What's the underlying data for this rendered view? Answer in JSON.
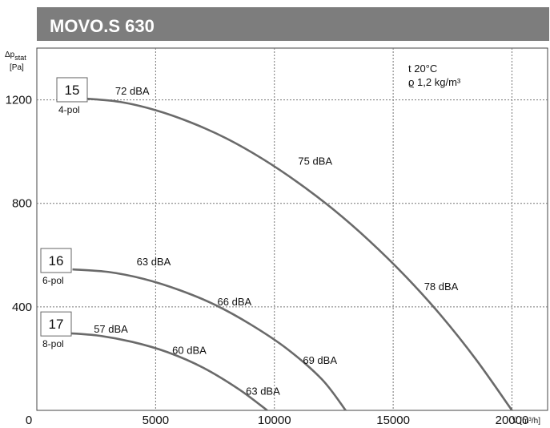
{
  "chart_data": {
    "type": "line",
    "title": "MOVO.S 630",
    "xlabel": "V̇ [m³/h]",
    "ylabel_top": "Δp",
    "ylabel_sub": "stat",
    "ylabel_unit": "[Pa]",
    "xlim": [
      0,
      21500
    ],
    "ylim": [
      0,
      1400
    ],
    "x_ticks": [
      0,
      5000,
      10000,
      15000,
      20000
    ],
    "y_ticks": [
      400,
      800,
      1200
    ],
    "grid": true,
    "notes": [
      "t 20°C",
      "ϱ 1,2 kg/m³"
    ],
    "series": [
      {
        "name": "15",
        "poles": "4-pol",
        "x": [
          2000,
          3500,
          5000,
          6500,
          8000,
          9500,
          11000,
          12500,
          14000,
          15500,
          17000,
          18500,
          20000
        ],
        "y": [
          1205,
          1192,
          1160,
          1112,
          1050,
          972,
          880,
          775,
          655,
          520,
          368,
          195,
          0
        ]
      },
      {
        "name": "16",
        "poles": "6-pol",
        "x": [
          1500,
          3000,
          4500,
          6000,
          7500,
          9000,
          10500,
          12000,
          13000
        ],
        "y": [
          545,
          535,
          508,
          465,
          408,
          332,
          240,
          120,
          0
        ]
      },
      {
        "name": "17",
        "poles": "8-pol",
        "x": [
          1000,
          2500,
          4000,
          5500,
          7000,
          8500,
          9700
        ],
        "y": [
          300,
          290,
          265,
          225,
          165,
          82,
          0
        ]
      }
    ],
    "annotations": [
      {
        "text": "72 dBA",
        "x": 3300,
        "y": 1220
      },
      {
        "text": "75 dBA",
        "x": 11000,
        "y": 950
      },
      {
        "text": "78 dBA",
        "x": 16300,
        "y": 465
      },
      {
        "text": "63 dBA",
        "x": 4200,
        "y": 560
      },
      {
        "text": "66 dBA",
        "x": 7600,
        "y": 405
      },
      {
        "text": "69 dBA",
        "x": 11200,
        "y": 180
      },
      {
        "text": "57 dBA",
        "x": 2400,
        "y": 300
      },
      {
        "text": "60 dBA",
        "x": 5700,
        "y": 218
      },
      {
        "text": "63 dBA",
        "x": 8800,
        "y": 60
      }
    ]
  }
}
